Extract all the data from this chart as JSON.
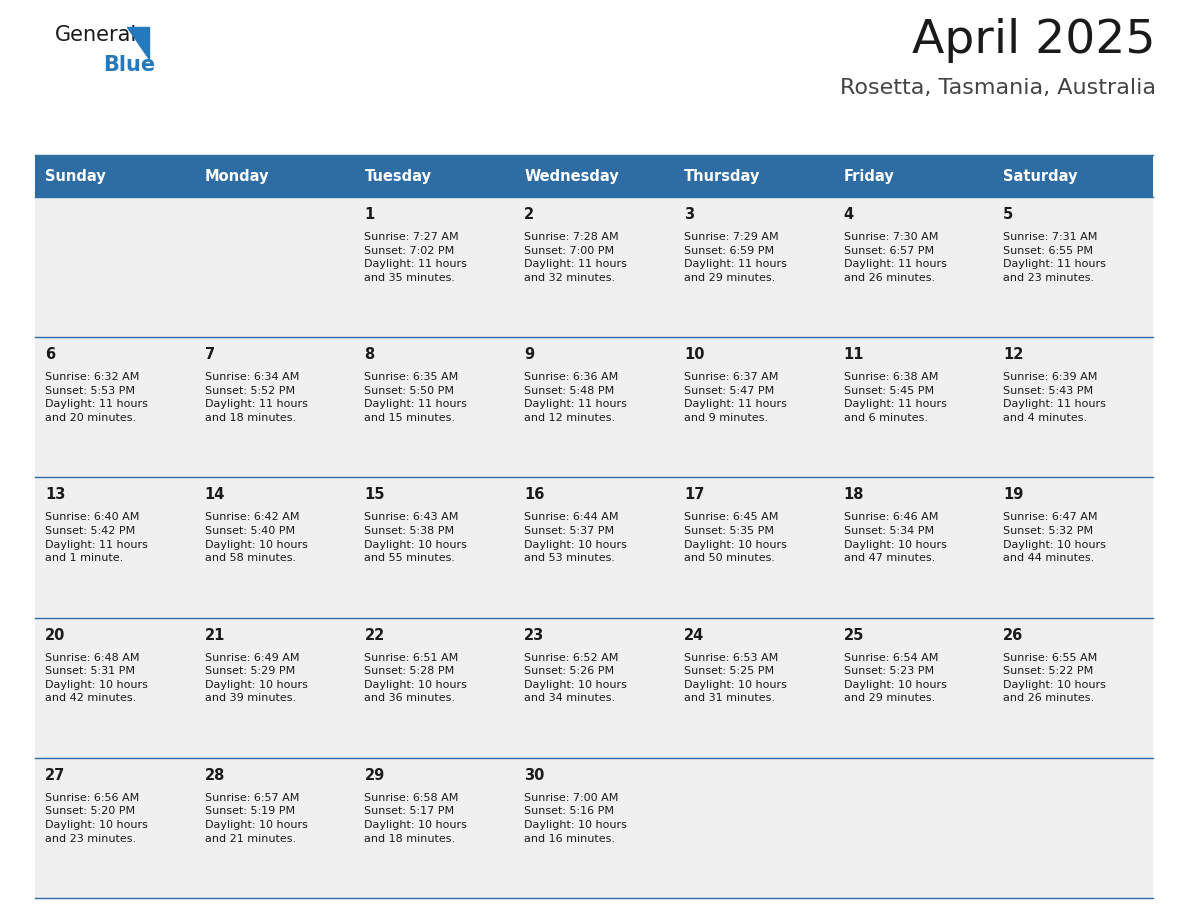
{
  "title": "April 2025",
  "subtitle": "Rosetta, Tasmania, Australia",
  "header_color": "#2E6DA4",
  "header_text_color": "#FFFFFF",
  "cell_bg_color": "#F0F0F0",
  "cell_border_color": "#2E6DA4",
  "day_names": [
    "Sunday",
    "Monday",
    "Tuesday",
    "Wednesday",
    "Thursday",
    "Friday",
    "Saturday"
  ],
  "weeks": [
    [
      {
        "day": "",
        "info": ""
      },
      {
        "day": "",
        "info": ""
      },
      {
        "day": "1",
        "info": "Sunrise: 7:27 AM\nSunset: 7:02 PM\nDaylight: 11 hours\nand 35 minutes."
      },
      {
        "day": "2",
        "info": "Sunrise: 7:28 AM\nSunset: 7:00 PM\nDaylight: 11 hours\nand 32 minutes."
      },
      {
        "day": "3",
        "info": "Sunrise: 7:29 AM\nSunset: 6:59 PM\nDaylight: 11 hours\nand 29 minutes."
      },
      {
        "day": "4",
        "info": "Sunrise: 7:30 AM\nSunset: 6:57 PM\nDaylight: 11 hours\nand 26 minutes."
      },
      {
        "day": "5",
        "info": "Sunrise: 7:31 AM\nSunset: 6:55 PM\nDaylight: 11 hours\nand 23 minutes."
      }
    ],
    [
      {
        "day": "6",
        "info": "Sunrise: 6:32 AM\nSunset: 5:53 PM\nDaylight: 11 hours\nand 20 minutes."
      },
      {
        "day": "7",
        "info": "Sunrise: 6:34 AM\nSunset: 5:52 PM\nDaylight: 11 hours\nand 18 minutes."
      },
      {
        "day": "8",
        "info": "Sunrise: 6:35 AM\nSunset: 5:50 PM\nDaylight: 11 hours\nand 15 minutes."
      },
      {
        "day": "9",
        "info": "Sunrise: 6:36 AM\nSunset: 5:48 PM\nDaylight: 11 hours\nand 12 minutes."
      },
      {
        "day": "10",
        "info": "Sunrise: 6:37 AM\nSunset: 5:47 PM\nDaylight: 11 hours\nand 9 minutes."
      },
      {
        "day": "11",
        "info": "Sunrise: 6:38 AM\nSunset: 5:45 PM\nDaylight: 11 hours\nand 6 minutes."
      },
      {
        "day": "12",
        "info": "Sunrise: 6:39 AM\nSunset: 5:43 PM\nDaylight: 11 hours\nand 4 minutes."
      }
    ],
    [
      {
        "day": "13",
        "info": "Sunrise: 6:40 AM\nSunset: 5:42 PM\nDaylight: 11 hours\nand 1 minute."
      },
      {
        "day": "14",
        "info": "Sunrise: 6:42 AM\nSunset: 5:40 PM\nDaylight: 10 hours\nand 58 minutes."
      },
      {
        "day": "15",
        "info": "Sunrise: 6:43 AM\nSunset: 5:38 PM\nDaylight: 10 hours\nand 55 minutes."
      },
      {
        "day": "16",
        "info": "Sunrise: 6:44 AM\nSunset: 5:37 PM\nDaylight: 10 hours\nand 53 minutes."
      },
      {
        "day": "17",
        "info": "Sunrise: 6:45 AM\nSunset: 5:35 PM\nDaylight: 10 hours\nand 50 minutes."
      },
      {
        "day": "18",
        "info": "Sunrise: 6:46 AM\nSunset: 5:34 PM\nDaylight: 10 hours\nand 47 minutes."
      },
      {
        "day": "19",
        "info": "Sunrise: 6:47 AM\nSunset: 5:32 PM\nDaylight: 10 hours\nand 44 minutes."
      }
    ],
    [
      {
        "day": "20",
        "info": "Sunrise: 6:48 AM\nSunset: 5:31 PM\nDaylight: 10 hours\nand 42 minutes."
      },
      {
        "day": "21",
        "info": "Sunrise: 6:49 AM\nSunset: 5:29 PM\nDaylight: 10 hours\nand 39 minutes."
      },
      {
        "day": "22",
        "info": "Sunrise: 6:51 AM\nSunset: 5:28 PM\nDaylight: 10 hours\nand 36 minutes."
      },
      {
        "day": "23",
        "info": "Sunrise: 6:52 AM\nSunset: 5:26 PM\nDaylight: 10 hours\nand 34 minutes."
      },
      {
        "day": "24",
        "info": "Sunrise: 6:53 AM\nSunset: 5:25 PM\nDaylight: 10 hours\nand 31 minutes."
      },
      {
        "day": "25",
        "info": "Sunrise: 6:54 AM\nSunset: 5:23 PM\nDaylight: 10 hours\nand 29 minutes."
      },
      {
        "day": "26",
        "info": "Sunrise: 6:55 AM\nSunset: 5:22 PM\nDaylight: 10 hours\nand 26 minutes."
      }
    ],
    [
      {
        "day": "27",
        "info": "Sunrise: 6:56 AM\nSunset: 5:20 PM\nDaylight: 10 hours\nand 23 minutes."
      },
      {
        "day": "28",
        "info": "Sunrise: 6:57 AM\nSunset: 5:19 PM\nDaylight: 10 hours\nand 21 minutes."
      },
      {
        "day": "29",
        "info": "Sunrise: 6:58 AM\nSunset: 5:17 PM\nDaylight: 10 hours\nand 18 minutes."
      },
      {
        "day": "30",
        "info": "Sunrise: 7:00 AM\nSunset: 5:16 PM\nDaylight: 10 hours\nand 16 minutes."
      },
      {
        "day": "",
        "info": ""
      },
      {
        "day": "",
        "info": ""
      },
      {
        "day": "",
        "info": ""
      }
    ]
  ],
  "logo_color_general": "#1a1a1a",
  "logo_color_blue": "#2479BD",
  "title_color": "#1a1a1a",
  "subtitle_color": "#444444",
  "fig_width": 11.88,
  "fig_height": 9.18,
  "dpi": 100
}
